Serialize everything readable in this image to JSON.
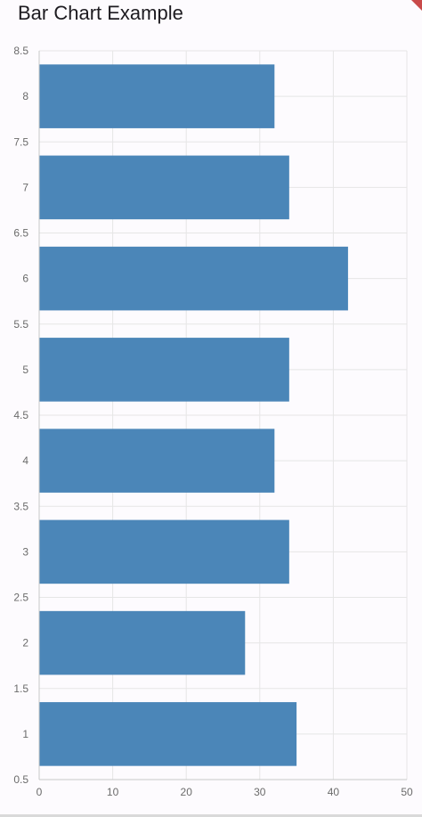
{
  "app": {
    "title": "Bar Chart Example"
  },
  "colors": {
    "bar": "#4b86b8",
    "grid": "#e6e6e6",
    "axis": "#c8c8c8",
    "label": "#6b6b6b",
    "banner": "#c94a4a"
  },
  "chart_data": {
    "type": "bar",
    "orientation": "horizontal",
    "title": "",
    "xlabel": "",
    "ylabel": "",
    "categories": [
      1,
      2,
      3,
      4,
      5,
      6,
      7,
      8
    ],
    "values": [
      35,
      28,
      34,
      32,
      34,
      42,
      34,
      32
    ],
    "xlim": [
      0,
      50
    ],
    "ylim": [
      0.5,
      8.5
    ],
    "x_ticks": [
      0,
      10,
      20,
      30,
      40,
      50
    ],
    "y_ticks": [
      0.5,
      1,
      1.5,
      2,
      2.5,
      3,
      3.5,
      4,
      4.5,
      5,
      5.5,
      6,
      6.5,
      7,
      7.5,
      8,
      8.5
    ],
    "bar_width": 0.7,
    "grid": true
  }
}
